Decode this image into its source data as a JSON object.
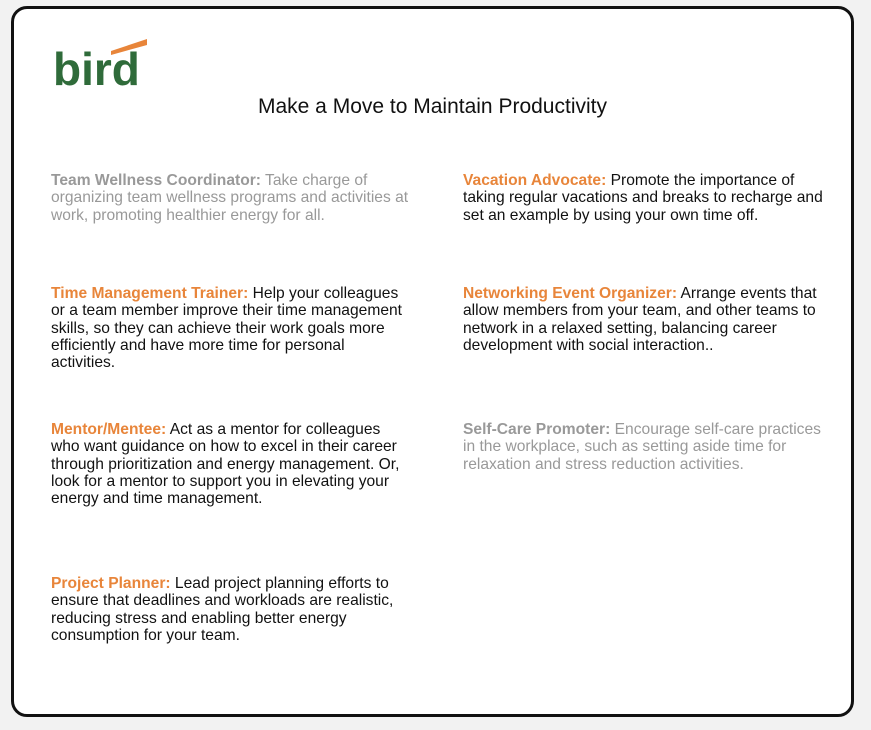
{
  "logo": {
    "text": "bird",
    "color": "#2f6b3a",
    "accent": "#e8853a"
  },
  "title": "Make a Move to Maintain Productivity",
  "colors": {
    "heading": "#e8853a",
    "muted": "#999999",
    "text": "#111111"
  },
  "items": [
    {
      "heading": "Team Wellness Coordinator:",
      "body": " Take charge of organizing team wellness programs and activities at work, promoting healthier energy for all.",
      "style": "muted"
    },
    {
      "heading": "Time Management Trainer:",
      "body": " Help your colleagues or a team member improve their time management skills, so they can achieve their work goals more efficiently and have more time for personal activities.",
      "style": "normal"
    },
    {
      "heading": "Mentor/Mentee:",
      "body": " Act as a mentor for colleagues who want guidance on how to excel in their career through prioritization and energy management. Or, look for a mentor to support you in elevating your energy and time management.",
      "style": "normal"
    },
    {
      "heading": "Project Planner:",
      "body": " Lead project planning efforts to ensure that deadlines and workloads are realistic, reducing stress and enabling better energy consumption for your team.",
      "style": "normal"
    },
    {
      "heading": "Vacation Advocate:",
      "body": " Promote the importance of taking regular vacations and breaks to recharge and set an example by using your own time off.",
      "style": "normal"
    },
    {
      "heading": "Networking Event Organizer:",
      "body": " Arrange events that allow members from your team, and other teams to network in a relaxed setting, balancing career development with social interaction..",
      "style": "normal"
    },
    {
      "heading": "Self-Care Promoter:",
      "body": " Encourage self-care practices in the workplace, such as setting aside time for relaxation and stress reduction activities.",
      "style": "muted"
    }
  ]
}
